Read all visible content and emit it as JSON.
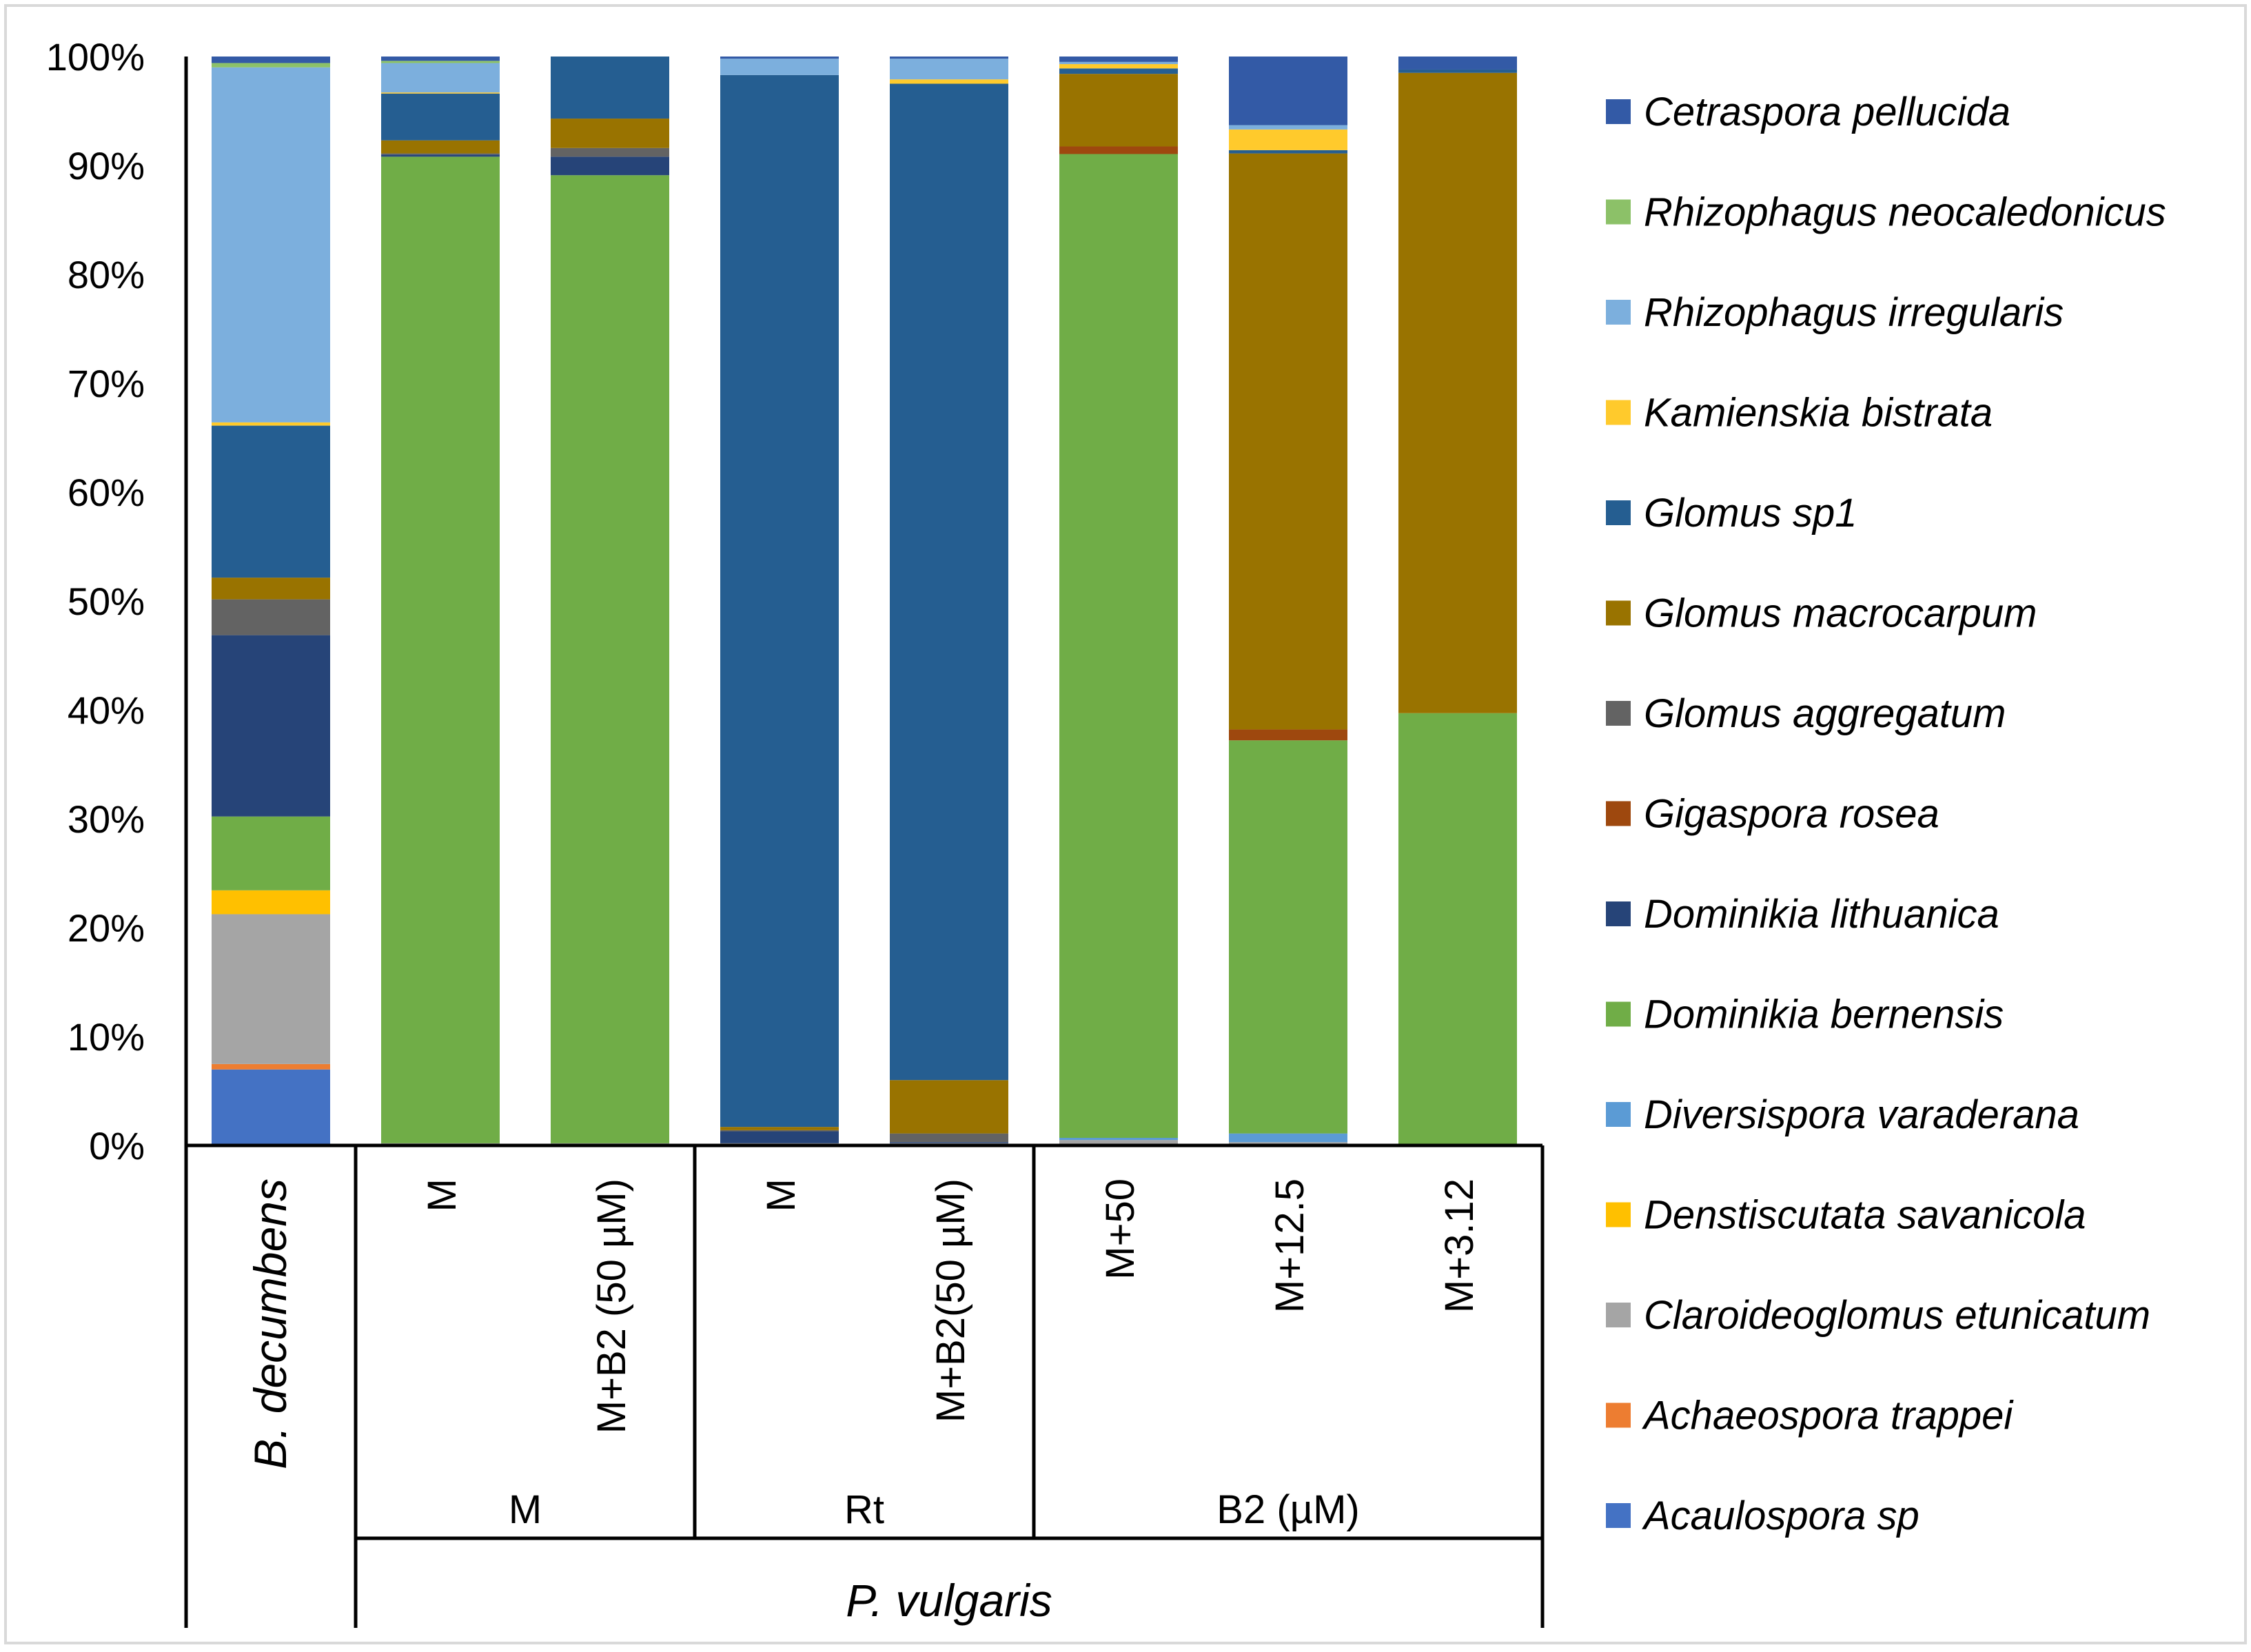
{
  "chart_data": {
    "type": "bar",
    "stacked": true,
    "normalized": true,
    "ylim": [
      0,
      100
    ],
    "y_ticks": [
      "0%",
      "10%",
      "20%",
      "30%",
      "40%",
      "50%",
      "60%",
      "70%",
      "80%",
      "90%",
      "100%"
    ],
    "legend_position": "right",
    "categories": [
      "B. decumbens",
      "M",
      "M+B2 (50 µM)",
      "M",
      "M+B2(50 µM)",
      "M+50",
      "M+12.5",
      "M+3.12"
    ],
    "groups": [
      {
        "label": "M",
        "categories": [
          1,
          2
        ]
      },
      {
        "label": "Rt",
        "categories": [
          3,
          4
        ]
      },
      {
        "label": "B2 (µM)",
        "categories": [
          5,
          6,
          7
        ]
      }
    ],
    "species_groups": [
      {
        "label": "P. vulgaris",
        "categories": [
          1,
          2,
          3,
          4,
          5,
          6,
          7
        ]
      }
    ],
    "series": [
      {
        "name": "Acaulospora sp",
        "color": "#4472C4",
        "values": [
          7.0,
          0,
          0,
          0,
          0,
          0,
          0,
          0
        ]
      },
      {
        "name": "Achaeospora trappei",
        "color": "#ED7D31",
        "values": [
          0.5,
          0,
          0,
          0,
          0,
          0,
          0,
          0
        ]
      },
      {
        "name": "Claroideoglomus etunicatum",
        "color": "#A5A5A5",
        "values": [
          13.8,
          0.2,
          0.2,
          0.2,
          0.2,
          0.5,
          0.3,
          0
        ]
      },
      {
        "name": "Denstiscutata savanicola",
        "color": "#FFC000",
        "values": [
          2.2,
          0,
          0,
          0,
          0,
          0,
          0,
          0
        ]
      },
      {
        "name": "Diversispora varaderana",
        "color": "#5B9BD5",
        "values": [
          0,
          0,
          0,
          0,
          0,
          0.2,
          0.8,
          0
        ]
      },
      {
        "name": "Dominikia bernensis",
        "color": "#70AD47",
        "values": [
          6.8,
          90.6,
          88.9,
          0,
          0,
          90.8,
          36.1,
          39.7
        ]
      },
      {
        "name": "Dominikia lithuanica",
        "color": "#264478",
        "values": [
          16.7,
          0.2,
          1.7,
          1.1,
          0.1,
          0,
          0,
          0
        ]
      },
      {
        "name": "Gigaspora rosea",
        "color": "#9E480E",
        "values": [
          0,
          0,
          0,
          0,
          0,
          0.7,
          1.0,
          0
        ]
      },
      {
        "name": "Glomus aggregatum",
        "color": "#636363",
        "values": [
          3.3,
          0.1,
          0.8,
          0.1,
          0.8,
          0,
          0,
          0
        ]
      },
      {
        "name": "Glomus macrocarpum",
        "color": "#997300",
        "values": [
          2.0,
          1.2,
          2.7,
          0.3,
          4.9,
          6.7,
          52.9,
          58.8
        ]
      },
      {
        "name": "Glomus sp1",
        "color": "#255E91",
        "values": [
          14.0,
          4.3,
          5.7,
          96.6,
          91.5,
          0.5,
          0.3,
          0.3
        ]
      },
      {
        "name": "Kamienskia bistrata",
        "color": "#FFCA2C",
        "values": [
          0.3,
          0.1,
          0,
          0,
          0.4,
          0.4,
          1.9,
          0
        ]
      },
      {
        "name": "Rhizophagus irregularis",
        "color": "#7CAFDD",
        "values": [
          32.7,
          2.7,
          0,
          1.5,
          1.9,
          0.2,
          0.4,
          0
        ]
      },
      {
        "name": "Rhizophagus neocaledonicus",
        "color": "#8CC168",
        "values": [
          0.4,
          0.2,
          0,
          0,
          0,
          0,
          0,
          0
        ]
      },
      {
        "name": "Cetraspora pellucida",
        "color": "#335AA6",
        "values": [
          0.6,
          0.4,
          0,
          0.2,
          0.2,
          0.5,
          6.3,
          1.2
        ]
      }
    ]
  }
}
